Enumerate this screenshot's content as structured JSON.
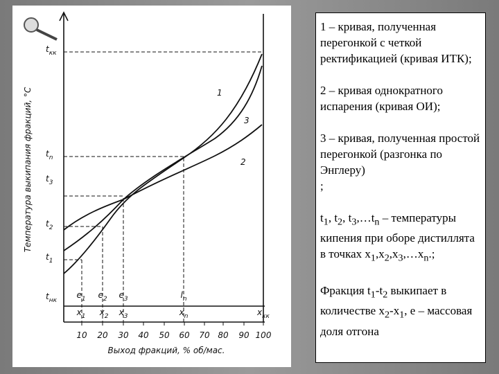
{
  "figure": {
    "y_axis_label": "Температура выкипания фракций, °C",
    "x_axis_label": "Выход фракций, % об/мас.",
    "x_ticks": [
      "10",
      "20",
      "30",
      "40",
      "50",
      "60",
      "70",
      "80",
      "90",
      "100"
    ],
    "y_levels": [
      {
        "base": "t",
        "sub": "кк"
      },
      {
        "base": "t",
        "sub": "n"
      },
      {
        "base": "t",
        "sub": "3"
      },
      {
        "base": "t",
        "sub": "2"
      },
      {
        "base": "t",
        "sub": "1"
      },
      {
        "base": "t",
        "sub": "нк"
      }
    ],
    "e_labels": [
      {
        "base": "e",
        "sub": "1"
      },
      {
        "base": "e",
        "sub": "2"
      },
      {
        "base": "e",
        "sub": "3"
      },
      {
        "base": "l",
        "sub": "n"
      }
    ],
    "x_labels": [
      {
        "base": "x",
        "sub": "1"
      },
      {
        "base": "x",
        "sub": "2"
      },
      {
        "base": "x",
        "sub": "3"
      },
      {
        "base": "x",
        "sub": "n"
      },
      {
        "base": "x",
        "sub": "кк"
      }
    ],
    "curve_labels": [
      "1",
      "3",
      "2"
    ]
  },
  "text_box": {
    "paragraphs": [
      [
        "1 – кривая, полученная перегонкой с четкой ректификацией (кривая ИТК);"
      ],
      [
        "2 – кривая однократного испарения (кривая ОИ);"
      ],
      [
        "3 – кривая, полученная простой перегонкой (разгонка по Энглеру)"
      ],
      [
        ";"
      ],
      [
        "t",
        "1",
        ", t",
        "2",
        ",  t",
        "3",
        ",…t",
        "n",
        " – температуры кипения при оборе дистиллята в точках x",
        "1",
        ",x",
        "2",
        ",x",
        "3",
        ",…x",
        "n",
        ".;"
      ],
      [
        "Фракция t",
        "1",
        "-t",
        "2",
        " выкипает в количестве x",
        "2",
        "-x",
        "1",
        ", e – массовая доля отгона"
      ]
    ]
  }
}
